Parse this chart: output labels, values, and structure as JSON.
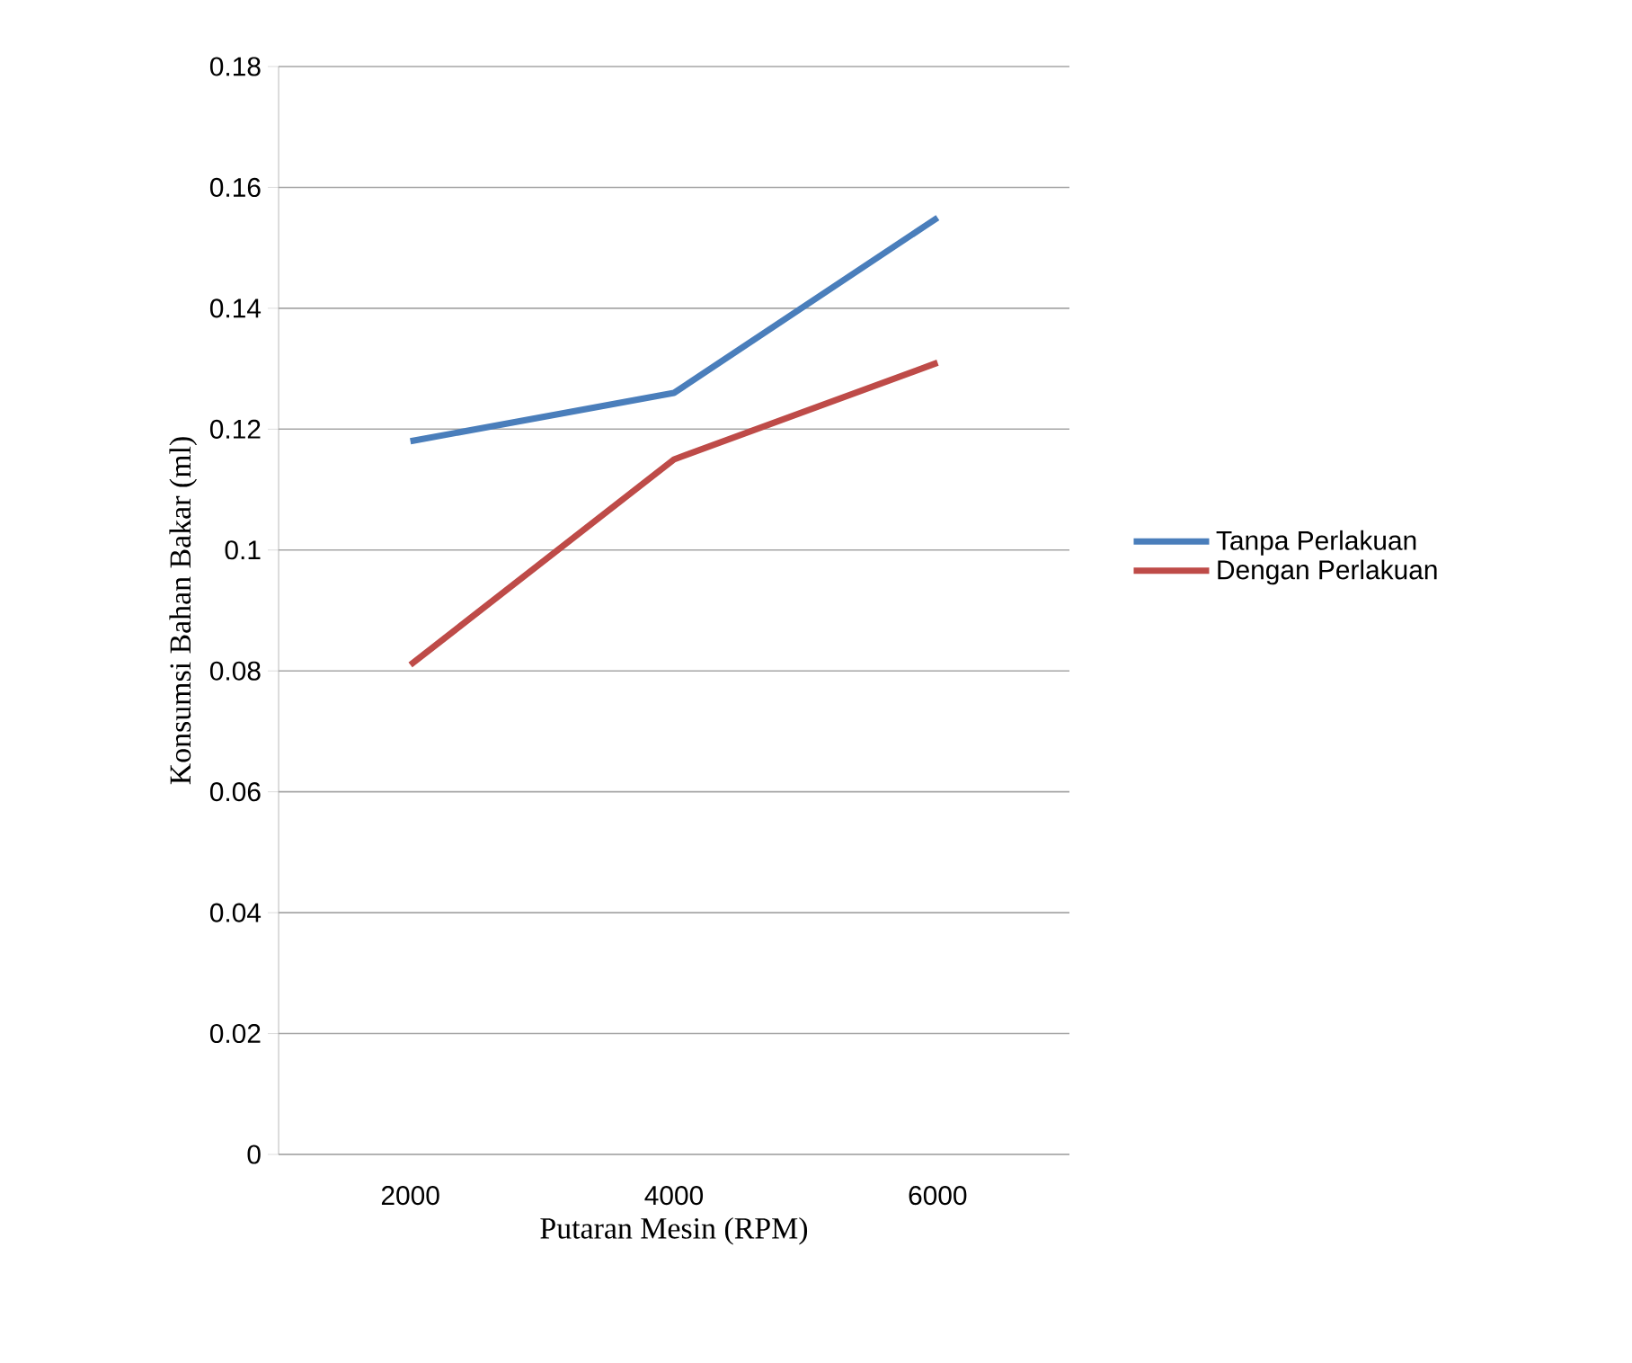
{
  "chart_data": {
    "type": "line",
    "xlabel": "Putaran Mesin (RPM)",
    "ylabel": "Konsumsi Bahan Bakar (ml)",
    "categories": [
      "2000",
      "4000",
      "6000"
    ],
    "series": [
      {
        "name": "Tanpa Perlakuan",
        "color": "#4a7ebb",
        "values": [
          0.118,
          0.126,
          0.155
        ]
      },
      {
        "name": "Dengan Perlakuan",
        "color": "#be4b48",
        "values": [
          0.081,
          0.115,
          0.131
        ]
      }
    ],
    "ylim": [
      0,
      0.18
    ],
    "yticks": [
      0,
      0.02,
      0.04,
      0.06,
      0.08,
      0.1,
      0.12,
      0.14,
      0.16,
      0.18
    ],
    "grid": "y",
    "legend": "right",
    "marker": "none",
    "line_style": "solid"
  }
}
